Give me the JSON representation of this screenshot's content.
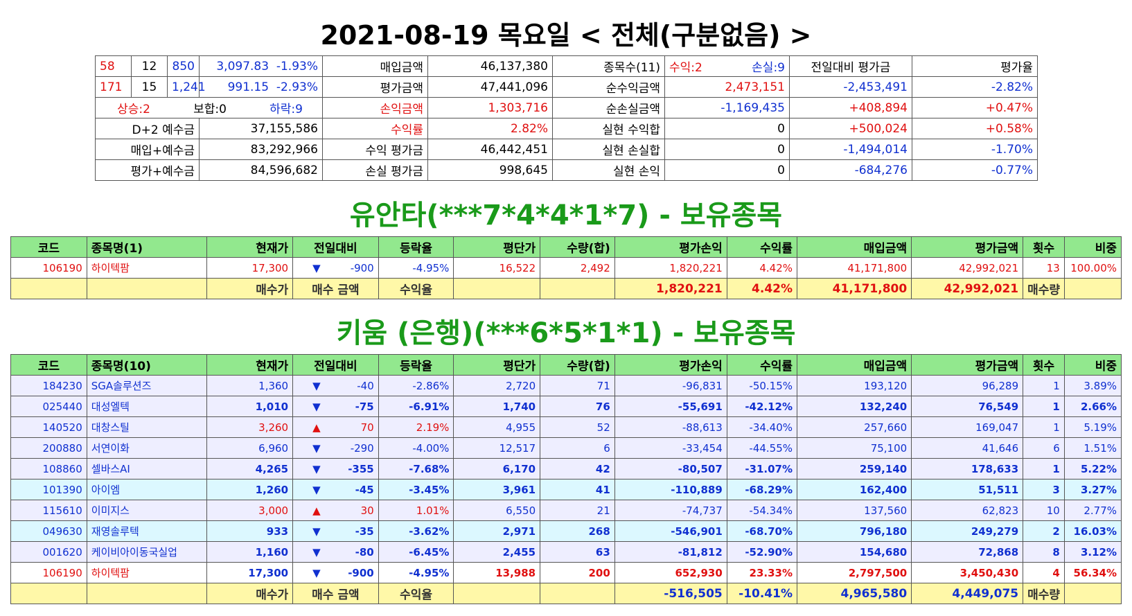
{
  "main_title": "2021-08-19 목요일 < 전체(구분없음) >",
  "summary": [
    [
      "58",
      "12",
      "850",
      "3,097.83",
      "-1.93%",
      "매입금액",
      "46,137,380",
      "종목수(11)",
      "수익:2",
      "손실:9",
      "전일대비 평가금",
      "평가율"
    ],
    [
      "171",
      "15",
      "1,241",
      "991.15",
      "-2.93%",
      "평가금액",
      "47,441,096",
      "순수익금액",
      "2,473,151",
      "-2,453,491",
      "-2.82%"
    ],
    [
      "상승:2",
      "보합:0",
      "하락:9",
      "손익금액",
      "1,303,716",
      "순손실금액",
      "-1,169,435",
      "+408,894",
      "+0.47%"
    ],
    [
      "D+2 예수금",
      "37,155,586",
      "수익률",
      "2.82%",
      "실현 수익합",
      "0",
      "+500,024",
      "+0.58%"
    ],
    [
      "매입+예수금",
      "83,292,966",
      "수익 평가금",
      "46,442,451",
      "실현 손실합",
      "0",
      "-1,494,014",
      "-1.70%"
    ],
    [
      "평가+예수금",
      "84,596,682",
      "손실 평가금",
      "998,645",
      "실현 손익",
      "0",
      "-684,276",
      "-0.77%"
    ]
  ],
  "sec1": {
    "title": "유안타(***7*4*4*1*7) - 보유종목",
    "headers": [
      "코드",
      "종목명(1)",
      "현재가",
      "전일대비",
      "등락율",
      "평단가",
      "수량(합)",
      "평가손익",
      "수익률",
      "매입금액",
      "평가금액",
      "횟수",
      "비중"
    ],
    "rows": [
      [
        "106190",
        "하이텍팜",
        "17,300",
        "▼",
        "-900",
        "-4.95%",
        "16,522",
        "2,492",
        "1,820,221",
        "4.42%",
        "41,171,800",
        "42,992,021",
        "13",
        "100.00%"
      ]
    ],
    "total": [
      "매수가",
      "매수 금액",
      "수익율",
      "1,820,221",
      "4.42%",
      "41,171,800",
      "42,992,021",
      "매수량"
    ]
  },
  "sec2": {
    "title": "키움 (은행)(***6*5*1*1) - 보유종목",
    "headers": [
      "코드",
      "종목명(10)",
      "현재가",
      "전일대비",
      "등락율",
      "평단가",
      "수량(합)",
      "평가손익",
      "수익률",
      "매입금액",
      "평가금액",
      "횟수",
      "비중"
    ],
    "rows": [
      [
        "184230",
        "SGA솔루션즈",
        "1,360",
        "▼",
        "-40",
        "-2.86%",
        "2,720",
        "71",
        "-96,831",
        "-50.15%",
        "193,120",
        "96,289",
        "1",
        "3.89%"
      ],
      [
        "025440",
        "대성엘텍",
        "1,010",
        "▼",
        "-75",
        "-6.91%",
        "1,740",
        "76",
        "-55,691",
        "-42.12%",
        "132,240",
        "76,549",
        "1",
        "2.66%"
      ],
      [
        "140520",
        "대창스틸",
        "3,260",
        "▲",
        "70",
        "2.19%",
        "4,955",
        "52",
        "-88,613",
        "-34.40%",
        "257,660",
        "169,047",
        "1",
        "5.19%"
      ],
      [
        "200880",
        "서연이화",
        "6,960",
        "▼",
        "-290",
        "-4.00%",
        "12,517",
        "6",
        "-33,454",
        "-44.55%",
        "75,100",
        "41,646",
        "6",
        "1.51%"
      ],
      [
        "108860",
        "셀바스AI",
        "4,265",
        "▼",
        "-355",
        "-7.68%",
        "6,170",
        "42",
        "-80,507",
        "-31.07%",
        "259,140",
        "178,633",
        "1",
        "5.22%"
      ],
      [
        "101390",
        "아이엠",
        "1,260",
        "▼",
        "-45",
        "-3.45%",
        "3,961",
        "41",
        "-110,889",
        "-68.29%",
        "162,400",
        "51,511",
        "3",
        "3.27%"
      ],
      [
        "115610",
        "이미지스",
        "3,000",
        "▲",
        "30",
        "1.01%",
        "6,550",
        "21",
        "-74,737",
        "-54.34%",
        "137,560",
        "62,823",
        "10",
        "2.77%"
      ],
      [
        "049630",
        "재영솔루텍",
        "933",
        "▼",
        "-35",
        "-3.62%",
        "2,971",
        "268",
        "-546,901",
        "-68.70%",
        "796,180",
        "249,279",
        "2",
        "16.03%"
      ],
      [
        "001620",
        "케이비아이동국실업",
        "1,160",
        "▼",
        "-80",
        "-6.45%",
        "2,455",
        "63",
        "-81,812",
        "-52.90%",
        "154,680",
        "72,868",
        "8",
        "3.12%"
      ],
      [
        "106190",
        "하이텍팜",
        "17,300",
        "▼",
        "-900",
        "-4.95%",
        "13,988",
        "200",
        "652,930",
        "23.33%",
        "2,797,500",
        "3,450,430",
        "4",
        "56.34%"
      ]
    ],
    "total": [
      "매수가",
      "매수 금액",
      "수익율",
      "-516,505",
      "-10.41%",
      "4,965,580",
      "4,449,075",
      "매수량"
    ]
  }
}
